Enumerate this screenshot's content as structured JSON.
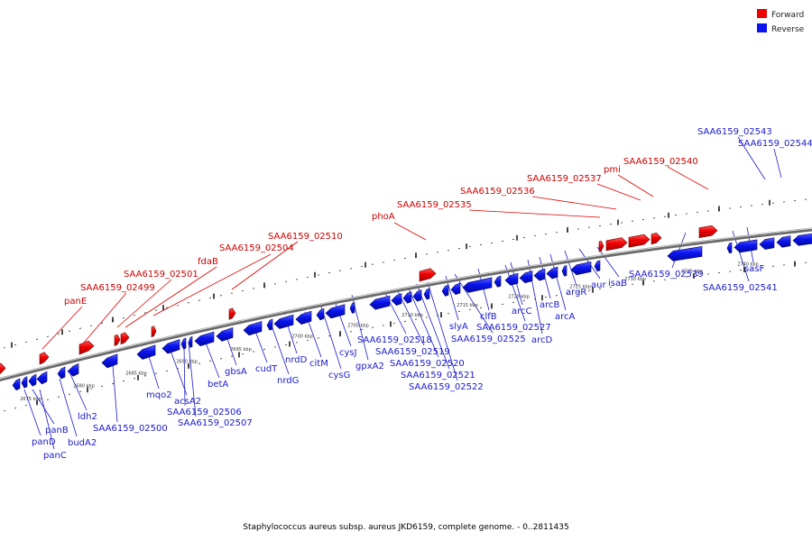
{
  "legend": {
    "forward_label": "Forward",
    "reverse_label": "Reverse",
    "forward_color": "#ee0000",
    "reverse_color": "#0a14f0"
  },
  "caption": "Staphylococcus aureus subsp. aureus JKD6159, complete genome. - 0..2811435",
  "track_color": "#888888",
  "scale_labels": [
    "2675 kbp",
    "2680 kbp",
    "2685 kbp",
    "2690 kbp",
    "2695 kbp",
    "2700 kbp",
    "2705 kbp",
    "2710 kbp",
    "2715 kbp",
    "2720 kbp",
    "2725 kbp",
    "2730 kbp",
    "2735 kbp",
    "2740 kbp"
  ],
  "forward_labels": [
    "panE",
    "SAA6159_02499",
    "SAA6159_02501",
    "fdaB",
    "SAA6159_02504",
    "SAA6159_02510",
    "phoA",
    "SAA6159_02535",
    "SAA6159_02536",
    "SAA6159_02537",
    "pmi",
    "SAA6159_02540"
  ],
  "reverse_labels": [
    "panB",
    "panD",
    "panC",
    "budA2",
    "ldh2",
    "SAA6159_02500",
    "mqo2",
    "acsA2",
    "SAA6159_02506",
    "SAA6159_02507",
    "betA",
    "gbsA",
    "cudT",
    "nrdG",
    "nrdD",
    "citM",
    "cysG",
    "cysJ",
    "gpxA2",
    "SAA6159_02518",
    "SAA6159_02519",
    "SAA6159_02520",
    "SAA6159_02521",
    "SAA6159_02522",
    "slyA",
    "SAA6159_02525",
    "clfB",
    "SAA6159_02527",
    "arcC",
    "arcD",
    "arcB",
    "arcA",
    "argR",
    "aur",
    "isaB",
    "SAA6159_02539",
    "SAA6159_02541",
    "sasF",
    "SAA6159_02543",
    "SAA6159_02544"
  ]
}
